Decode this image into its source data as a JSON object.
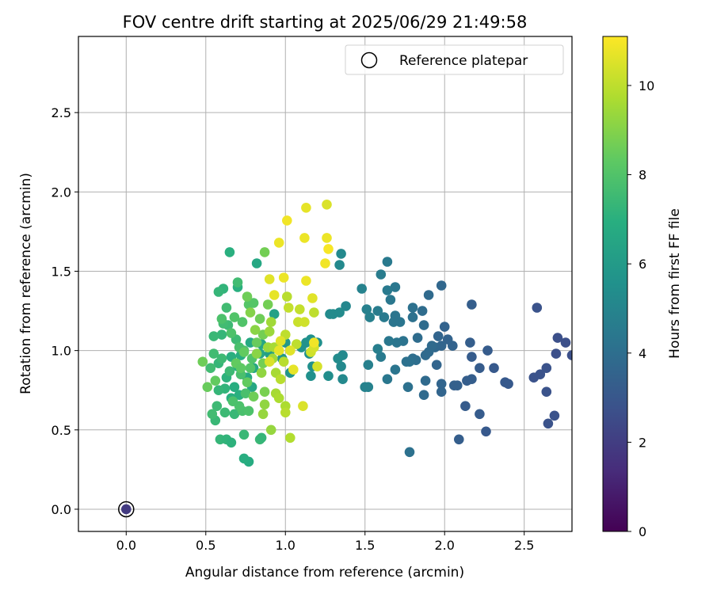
{
  "chart_data": {
    "type": "scatter",
    "title": "FOV centre drift starting at 2025/06/29 21:49:58",
    "xlabel": "Angular distance from reference (arcmin)",
    "ylabel": "Rotation from reference (arcmin)",
    "xlim": [
      -0.3,
      2.8
    ],
    "ylim": [
      -0.14,
      2.98
    ],
    "xticks": [
      "0.0",
      "0.5",
      "1.0",
      "1.5",
      "2.0",
      "2.5"
    ],
    "yticks": [
      "0.0",
      "0.5",
      "1.0",
      "1.5",
      "2.0",
      "2.5"
    ],
    "grid": true,
    "legend": {
      "placement": "top-right",
      "entries": [
        {
          "name": "Reference platepar",
          "marker": "open-circle"
        }
      ]
    },
    "colorbar": {
      "label": "Hours from first FF file",
      "colormap": "viridis",
      "range": [
        0,
        11.1
      ],
      "ticks": [
        "0",
        "2",
        "4",
        "6",
        "8",
        "10"
      ]
    },
    "reference_point": {
      "x": 0.0,
      "y": 0.0,
      "hours": 1.9
    },
    "series": [
      {
        "name": "",
        "points": [
          [
            2.58,
            1.27,
            2.8
          ],
          [
            2.71,
            1.08,
            2.7
          ],
          [
            2.76,
            1.05,
            2.7
          ],
          [
            2.8,
            0.97,
            2.7
          ],
          [
            2.7,
            0.98,
            2.7
          ],
          [
            2.64,
            0.89,
            2.8
          ],
          [
            2.6,
            0.85,
            2.8
          ],
          [
            2.56,
            0.83,
            2.8
          ],
          [
            2.64,
            0.74,
            2.8
          ],
          [
            2.69,
            0.59,
            2.8
          ],
          [
            2.65,
            0.54,
            2.8
          ],
          [
            2.38,
            0.8,
            3.1
          ],
          [
            2.4,
            0.79,
            3.1
          ],
          [
            2.31,
            0.89,
            3.1
          ],
          [
            2.27,
            1.0,
            3.2
          ],
          [
            2.22,
            0.89,
            3.2
          ],
          [
            2.17,
            1.29,
            3.3
          ],
          [
            2.17,
            0.96,
            3.2
          ],
          [
            2.16,
            1.05,
            3.3
          ],
          [
            2.17,
            0.82,
            3.3
          ],
          [
            2.14,
            0.81,
            3.3
          ],
          [
            2.13,
            0.65,
            3.2
          ],
          [
            2.22,
            0.6,
            3.2
          ],
          [
            2.26,
            0.49,
            3.1
          ],
          [
            2.09,
            0.44,
            3.3
          ],
          [
            2.08,
            0.78,
            3.4
          ],
          [
            2.06,
            0.78,
            3.4
          ],
          [
            2.05,
            1.03,
            3.5
          ],
          [
            2.02,
            1.07,
            3.5
          ],
          [
            2.0,
            1.15,
            3.5
          ],
          [
            1.98,
            1.03,
            3.6
          ],
          [
            1.98,
            1.41,
            3.7
          ],
          [
            1.96,
            1.09,
            3.6
          ],
          [
            1.95,
            0.91,
            3.6
          ],
          [
            1.94,
            1.02,
            3.7
          ],
          [
            1.92,
            1.03,
            3.8
          ],
          [
            1.9,
            0.99,
            3.8
          ],
          [
            1.88,
            0.97,
            3.8
          ],
          [
            1.88,
            0.81,
            3.8
          ],
          [
            1.87,
            0.72,
            3.8
          ],
          [
            1.98,
            0.74,
            3.6
          ],
          [
            1.98,
            0.79,
            3.6
          ],
          [
            1.9,
            1.35,
            3.8
          ],
          [
            1.87,
            1.16,
            3.9
          ],
          [
            1.86,
            1.25,
            3.9
          ],
          [
            1.83,
            1.08,
            3.9
          ],
          [
            1.8,
            1.27,
            4.1
          ],
          [
            1.8,
            1.21,
            4.1
          ],
          [
            1.82,
            0.94,
            4.0
          ],
          [
            1.8,
            0.95,
            4.0
          ],
          [
            1.78,
            0.93,
            4.1
          ],
          [
            1.77,
            0.77,
            4.1
          ],
          [
            1.76,
            0.93,
            4.1
          ],
          [
            1.74,
            1.06,
            4.2
          ],
          [
            1.78,
            0.36,
            4.1
          ],
          [
            1.72,
            1.18,
            4.3
          ],
          [
            1.7,
            1.05,
            4.3
          ],
          [
            1.69,
            1.22,
            4.3
          ],
          [
            1.68,
            1.18,
            4.3
          ],
          [
            1.69,
            1.4,
            4.4
          ],
          [
            1.66,
            1.32,
            4.4
          ],
          [
            1.65,
            1.06,
            4.4
          ],
          [
            1.64,
            1.38,
            4.5
          ],
          [
            1.64,
            1.56,
            4.5
          ],
          [
            1.62,
            1.21,
            4.5
          ],
          [
            1.6,
            1.48,
            4.6
          ],
          [
            1.58,
            1.25,
            4.6
          ],
          [
            1.69,
            0.88,
            4.3
          ],
          [
            1.64,
            0.82,
            4.4
          ],
          [
            1.6,
            0.96,
            4.5
          ],
          [
            1.58,
            1.01,
            4.7
          ],
          [
            1.53,
            1.21,
            4.8
          ],
          [
            1.51,
            1.26,
            4.8
          ],
          [
            1.48,
            1.39,
            4.9
          ],
          [
            1.52,
            0.91,
            4.8
          ],
          [
            1.5,
            0.77,
            4.9
          ],
          [
            1.52,
            0.77,
            4.9
          ],
          [
            1.38,
            1.28,
            5.1
          ],
          [
            1.35,
            1.61,
            5.2
          ],
          [
            1.34,
            1.54,
            5.2
          ],
          [
            1.34,
            1.24,
            5.3
          ],
          [
            1.3,
            1.23,
            5.3
          ],
          [
            1.28,
            1.23,
            5.3
          ],
          [
            1.36,
            0.97,
            5.2
          ],
          [
            1.35,
            0.9,
            5.2
          ],
          [
            1.33,
            0.95,
            5.3
          ],
          [
            1.36,
            0.82,
            5.2
          ],
          [
            1.27,
            0.84,
            5.4
          ],
          [
            1.2,
            1.05,
            5.5
          ],
          [
            1.16,
            1.07,
            5.5
          ],
          [
            1.17,
            0.9,
            5.5
          ],
          [
            1.16,
            0.84,
            5.5
          ],
          [
            1.15,
            0.98,
            5.5
          ],
          [
            1.13,
            1.05,
            5.6
          ],
          [
            1.1,
            1.02,
            5.6
          ],
          [
            1.03,
            0.86,
            5.8
          ],
          [
            1.0,
            1.05,
            5.9
          ],
          [
            0.98,
            0.95,
            5.9
          ],
          [
            0.93,
            1.23,
            6.3
          ],
          [
            0.9,
            0.98,
            6.2
          ],
          [
            0.85,
            1.04,
            6.5
          ],
          [
            0.84,
            0.98,
            6.5
          ],
          [
            0.8,
            0.89,
            6.6
          ],
          [
            0.78,
            1.05,
            6.7
          ],
          [
            0.72,
            0.97,
            6.9
          ],
          [
            0.7,
            0.9,
            6.9
          ],
          [
            0.66,
            0.96,
            7.0
          ],
          [
            0.63,
            0.83,
            7.1
          ],
          [
            0.68,
            0.77,
            6.9
          ],
          [
            0.66,
            0.7,
            7.0
          ],
          [
            0.65,
            1.62,
            7.0
          ],
          [
            0.6,
            1.1,
            7.3
          ],
          [
            0.79,
            0.77,
            6.6
          ],
          [
            0.76,
            0.83,
            6.7
          ],
          [
            0.55,
            1.09,
            7.4
          ],
          [
            0.58,
            0.92,
            7.3
          ],
          [
            0.62,
            0.76,
            7.2
          ],
          [
            0.71,
            0.72,
            7.0
          ],
          [
            0.58,
            0.75,
            7.3
          ],
          [
            0.56,
            0.56,
            7.4
          ],
          [
            0.59,
            0.44,
            7.3
          ],
          [
            0.63,
            0.44,
            7.2
          ],
          [
            0.66,
            0.42,
            7.1
          ],
          [
            0.77,
            0.3,
            6.8
          ],
          [
            0.74,
            0.32,
            6.9
          ],
          [
            0.82,
            1.55,
            6.6
          ],
          [
            0.7,
            1.4,
            7.0
          ],
          [
            0.61,
            1.39,
            7.2
          ],
          [
            0.58,
            1.37,
            7.3
          ],
          [
            0.55,
            0.98,
            7.6
          ],
          [
            0.53,
            0.89,
            7.6
          ],
          [
            0.57,
            0.65,
            7.5
          ],
          [
            0.54,
            0.6,
            7.6
          ],
          [
            0.62,
            0.61,
            7.5
          ],
          [
            0.68,
            0.6,
            7.4
          ],
          [
            0.74,
            0.47,
            7.4
          ],
          [
            0.84,
            0.44,
            7.4
          ],
          [
            0.85,
            0.45,
            7.3
          ],
          [
            0.6,
            0.95,
            7.5
          ],
          [
            0.65,
            0.87,
            7.5
          ],
          [
            0.69,
            1.07,
            7.5
          ],
          [
            0.64,
            1.16,
            7.5
          ],
          [
            0.61,
            1.17,
            7.6
          ],
          [
            0.63,
            1.27,
            7.6
          ],
          [
            0.7,
            1.43,
            7.6
          ],
          [
            0.6,
            1.2,
            7.9
          ],
          [
            0.66,
            1.11,
            7.9
          ],
          [
            0.71,
            1.02,
            7.8
          ],
          [
            0.74,
            1.0,
            7.8
          ],
          [
            0.72,
            0.85,
            7.8
          ],
          [
            0.73,
            0.62,
            7.8
          ],
          [
            0.75,
            0.73,
            7.8
          ],
          [
            0.77,
            0.62,
            7.9
          ],
          [
            0.71,
            0.65,
            7.9
          ],
          [
            0.67,
            0.68,
            7.9
          ],
          [
            0.68,
            1.21,
            8.0
          ],
          [
            0.73,
            1.18,
            8.0
          ],
          [
            0.77,
            1.29,
            8.1
          ],
          [
            0.8,
            1.3,
            8.1
          ],
          [
            0.79,
            0.95,
            8.0
          ],
          [
            0.78,
            0.89,
            8.1
          ],
          [
            0.48,
            0.93,
            8.6
          ],
          [
            0.51,
            0.77,
            8.5
          ],
          [
            0.56,
            0.81,
            8.4
          ],
          [
            0.69,
            0.92,
            8.4
          ],
          [
            0.72,
            0.89,
            8.3
          ],
          [
            0.74,
            0.99,
            8.4
          ],
          [
            0.76,
            0.8,
            8.4
          ],
          [
            0.8,
            0.71,
            8.6
          ],
          [
            0.82,
            1.05,
            8.5
          ],
          [
            0.84,
            1.2,
            8.6
          ],
          [
            0.86,
            1.1,
            8.7
          ],
          [
            0.86,
            0.92,
            8.7
          ],
          [
            0.87,
            0.74,
            8.8
          ],
          [
            0.87,
            1.62,
            8.7
          ],
          [
            0.89,
            1.29,
            8.7
          ],
          [
            0.76,
            1.34,
            8.6
          ],
          [
            0.78,
            1.24,
            9.0
          ],
          [
            0.81,
            1.13,
            9.1
          ],
          [
            0.82,
            0.98,
            9.1
          ],
          [
            0.85,
            0.86,
            9.2
          ],
          [
            0.87,
            0.66,
            9.2
          ],
          [
            0.86,
            0.6,
            9.3
          ],
          [
            0.91,
            0.5,
            9.3
          ],
          [
            0.89,
            1.02,
            9.4
          ],
          [
            0.9,
            1.12,
            9.4
          ],
          [
            0.91,
            1.18,
            9.5
          ],
          [
            0.92,
            0.95,
            9.5
          ],
          [
            0.93,
            1.02,
            9.6
          ],
          [
            0.94,
            0.86,
            9.6
          ],
          [
            0.94,
            0.73,
            9.6
          ],
          [
            0.96,
            0.7,
            9.7
          ],
          [
            1.0,
            0.65,
            9.7
          ],
          [
            1.0,
            0.61,
            9.9
          ],
          [
            1.03,
            0.45,
            9.8
          ],
          [
            0.97,
            0.82,
            9.9
          ],
          [
            0.99,
            0.93,
            9.9
          ],
          [
            1.0,
            1.1,
            10.0
          ],
          [
            1.01,
            1.34,
            9.9
          ],
          [
            1.02,
            1.27,
            10.1
          ],
          [
            1.07,
            1.04,
            10.0
          ],
          [
            1.08,
            1.18,
            10.2
          ],
          [
            1.09,
            1.26,
            10.1
          ],
          [
            1.12,
            1.18,
            10.3
          ],
          [
            1.18,
            1.24,
            10.0
          ],
          [
            1.16,
            0.99,
            10.3
          ],
          [
            1.18,
            1.02,
            10.4
          ],
          [
            1.2,
            0.9,
            10.4
          ],
          [
            1.11,
            0.65,
            10.5
          ],
          [
            1.05,
            0.88,
            10.7
          ],
          [
            1.03,
            1.0,
            10.6
          ],
          [
            0.97,
            1.06,
            10.6
          ],
          [
            0.96,
            1.0,
            10.7
          ],
          [
            0.9,
            0.93,
            10.5
          ],
          [
            0.9,
            1.45,
            10.6
          ],
          [
            0.93,
            1.35,
            10.7
          ],
          [
            0.99,
            1.46,
            10.8
          ],
          [
            0.96,
            1.68,
            10.8
          ],
          [
            1.01,
            1.82,
            10.9
          ],
          [
            1.12,
            1.71,
            10.8
          ],
          [
            1.13,
            1.44,
            10.8
          ],
          [
            1.13,
            1.9,
            10.7
          ],
          [
            1.25,
            1.55,
            10.9
          ],
          [
            1.26,
            1.71,
            10.8
          ],
          [
            1.27,
            1.64,
            11.0
          ],
          [
            1.26,
            1.92,
            10.5
          ],
          [
            1.17,
            1.33,
            10.6
          ],
          [
            1.18,
            1.05,
            10.9
          ]
        ]
      }
    ]
  }
}
